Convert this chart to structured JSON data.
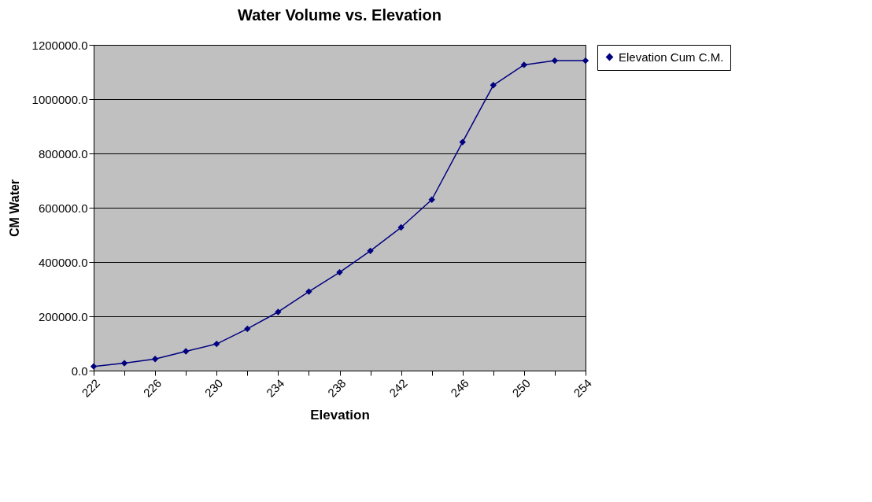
{
  "chart_data": {
    "type": "line",
    "title": "Water Volume vs. Elevation",
    "xlabel": "Elevation",
    "ylabel": "CM Water",
    "categories": [
      "222",
      null,
      "226",
      null,
      "230",
      null,
      "234",
      null,
      "238",
      null,
      "242",
      null,
      "246",
      null,
      "250",
      null,
      "254"
    ],
    "series": [
      {
        "name": "Elevation Cum C.M.",
        "color": "#000080",
        "values": [
          15500,
          27200,
          42700,
          71100,
          98300,
          153900,
          216000,
          291000,
          362000,
          441000,
          527600,
          629700,
          841800,
          1051300,
          1126300,
          1141800,
          1141800
        ]
      }
    ],
    "ylim": [
      0,
      1200000
    ],
    "yticks": [
      {
        "value": 0,
        "label": "0.0"
      },
      {
        "value": 200000,
        "label": "200000.0"
      },
      {
        "value": 400000,
        "label": "400000.0"
      },
      {
        "value": 600000,
        "label": "600000.0"
      },
      {
        "value": 800000,
        "label": "800000.0"
      },
      {
        "value": 1000000,
        "label": "1000000.0"
      },
      {
        "value": 1200000,
        "label": "1200000.0"
      }
    ],
    "grid": "y",
    "legend": "right",
    "marker": "diamond",
    "line_style": "solid"
  }
}
